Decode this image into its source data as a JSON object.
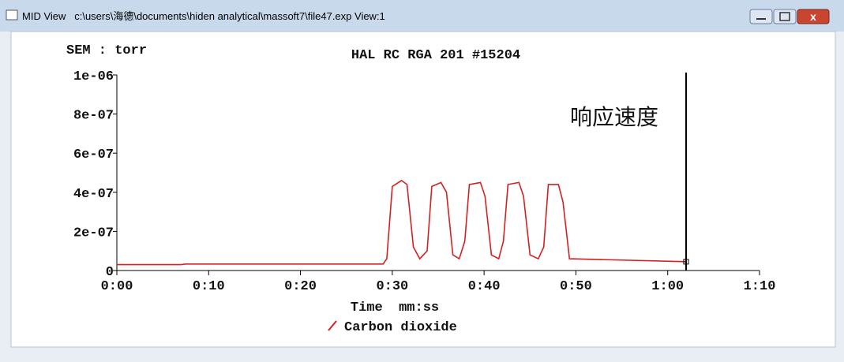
{
  "window": {
    "title": "MID View   c:\\users\\海德\\documents\\hiden analytical\\massoft7\\file47.exp View:1"
  },
  "chart_data": {
    "type": "line",
    "title": "HAL RC RGA 201 #15204",
    "y_label": "SEM : torr",
    "x_label": "Time  mm:ss",
    "annotation": "响应速度",
    "x": [
      0,
      7,
      7.5,
      29,
      29.4,
      30,
      31,
      31.6,
      32.3,
      33,
      33.8,
      34.3,
      35.3,
      35.9,
      36.6,
      37.3,
      37.9,
      38.4,
      39.6,
      40.1,
      40.8,
      41.6,
      42.1,
      42.6,
      43.8,
      44.3,
      45,
      45.9,
      46.5,
      47,
      48.1,
      48.6,
      49.3,
      62
    ],
    "series": [
      {
        "name": "Carbon dioxide",
        "color": "#d42020",
        "values": [
          3e-08,
          3e-08,
          3.3e-08,
          3.3e-08,
          6e-08,
          4.3e-07,
          4.6e-07,
          4.4e-07,
          1.2e-07,
          6e-08,
          1e-07,
          4.3e-07,
          4.5e-07,
          4e-07,
          8e-08,
          6e-08,
          1.5e-07,
          4.4e-07,
          4.5e-07,
          3.8e-07,
          8e-08,
          6e-08,
          1.5e-07,
          4.4e-07,
          4.5e-07,
          3.8e-07,
          8e-08,
          6e-08,
          1.2e-07,
          4.4e-07,
          4.4e-07,
          3.5e-07,
          6e-08,
          4.5e-08
        ]
      }
    ],
    "cursor": 62,
    "xlim": [
      0,
      70
    ],
    "xticks": [
      {
        "value": 0,
        "label": "0:00"
      },
      {
        "value": 10,
        "label": "0:10"
      },
      {
        "value": 20,
        "label": "0:20"
      },
      {
        "value": 30,
        "label": "0:30"
      },
      {
        "value": 40,
        "label": "0:40"
      },
      {
        "value": 50,
        "label": "0:50"
      },
      {
        "value": 60,
        "label": "1:00"
      },
      {
        "value": 70,
        "label": "1:10"
      }
    ],
    "ylim": [
      0,
      1e-06
    ],
    "yticks": [
      0,
      {
        "value": 2e-07,
        "label": "2e-07"
      },
      {
        "value": 4e-07,
        "label": "4e-07"
      },
      {
        "value": 6e-07,
        "label": "6e-07"
      },
      {
        "value": 8e-07,
        "label": "8e-07"
      },
      {
        "value": 1e-06,
        "label": "1e-06"
      }
    ]
  }
}
